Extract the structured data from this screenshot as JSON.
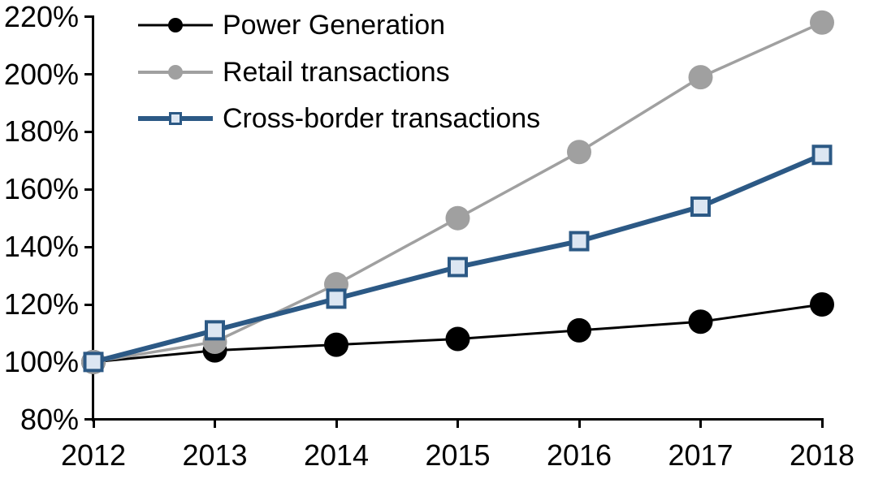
{
  "chart_data": {
    "type": "line",
    "title": "",
    "x_categories": [
      "2012",
      "2013",
      "2014",
      "2015",
      "2016",
      "2017",
      "2018"
    ],
    "y_axis": {
      "min": 80,
      "max": 220,
      "step": 20,
      "unit": "%",
      "tick_labels": [
        "80%",
        "100%",
        "120%",
        "140%",
        "160%",
        "180%",
        "200%",
        "220%"
      ]
    },
    "series": [
      {
        "name": "Power Generation",
        "color": "#000000",
        "marker": "circle",
        "marker_fill": "#000000",
        "line_width": 3,
        "marker_size": 30,
        "values": [
          100,
          104,
          106,
          108,
          111,
          114,
          120
        ]
      },
      {
        "name": "Retail transactions",
        "color": "#A0A0A0",
        "marker": "circle",
        "marker_fill": "#A0A0A0",
        "line_width": 3.5,
        "marker_size": 30,
        "values": [
          100,
          107,
          127,
          150,
          173,
          199,
          218
        ]
      },
      {
        "name": "Cross-border transactions",
        "color": "#2C5985",
        "marker": "square",
        "marker_fill": "#DCE6F2",
        "line_width": 6,
        "marker_size": 25,
        "values": [
          100,
          111,
          122,
          133,
          142,
          154,
          172
        ]
      }
    ],
    "legend_position": "top-left",
    "grid": false,
    "axis_color": "#000000"
  }
}
